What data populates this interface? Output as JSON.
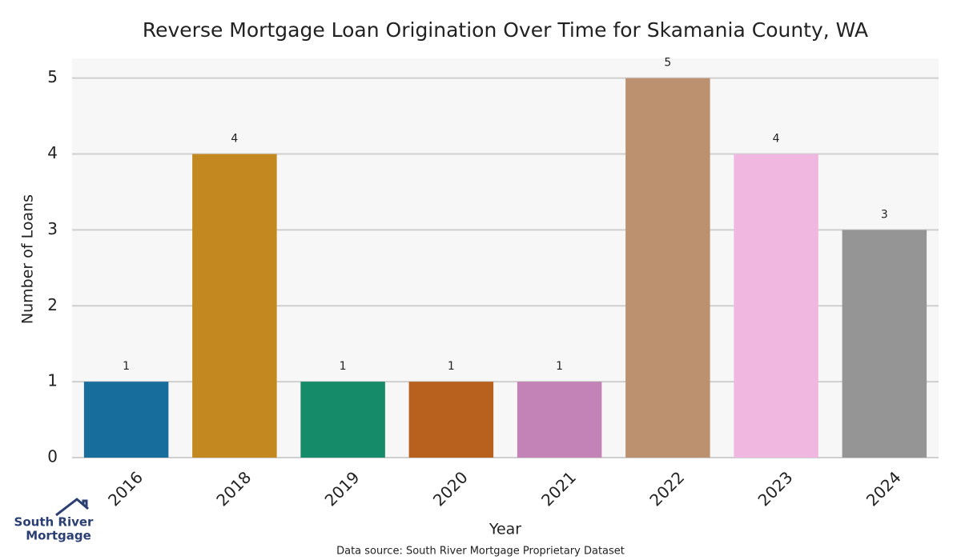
{
  "chart_data": {
    "type": "bar",
    "title": "Reverse Mortgage Loan Origination Over Time for Skamania County, WA",
    "x_label": "Year",
    "y_label": "Number of Loans",
    "categories": [
      "2016",
      "2018",
      "2019",
      "2020",
      "2021",
      "2022",
      "2023",
      "2024"
    ],
    "values": [
      1,
      4,
      1,
      1,
      1,
      5,
      4,
      3
    ],
    "colors": [
      "#176d9c",
      "#c38820",
      "#168b69",
      "#b8611e",
      "#c383b6",
      "#bb9170",
      "#f0b7e0",
      "#959595"
    ],
    "ylim": [
      0,
      5.26
    ],
    "yticks": [
      0,
      1,
      2,
      3,
      4,
      5
    ],
    "grid": true,
    "source": "Data source: South River Mortgage Proprietary Dataset"
  },
  "branding": {
    "logo_lines": [
      "South River",
      "Mortgage"
    ]
  }
}
